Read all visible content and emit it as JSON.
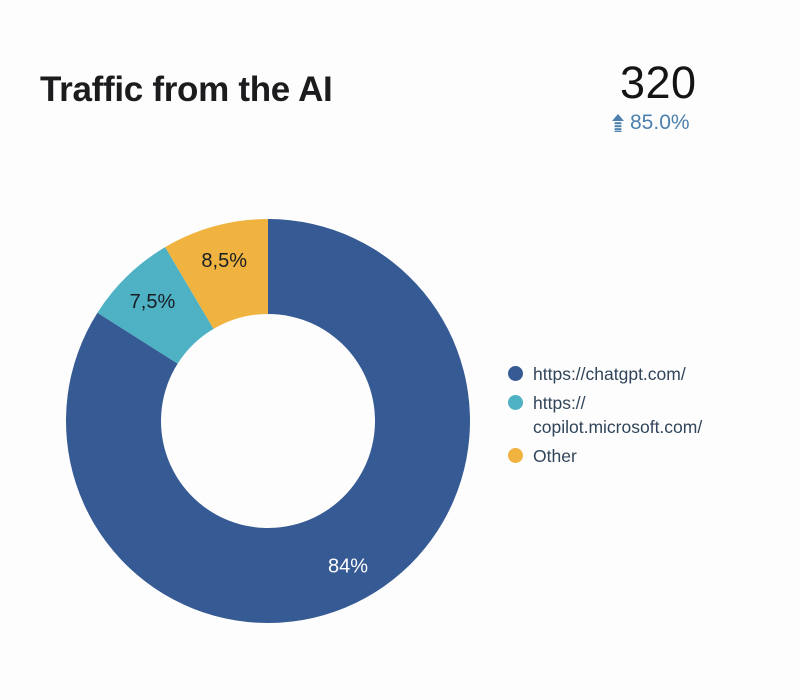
{
  "header": {
    "title": "Traffic from the AI"
  },
  "scorecard": {
    "value": "320",
    "delta": "85.0%",
    "delta_direction": "up",
    "delta_color": "#4c80ad"
  },
  "legend": {
    "items": [
      {
        "text": "https://chatgpt.com/"
      },
      {
        "text": "https://\ncopilot.microsoft.com/"
      },
      {
        "text": "Other"
      }
    ]
  },
  "chart_data": {
    "type": "pie",
    "subtype": "donut",
    "title": "Traffic from the AI",
    "unit": "%",
    "start_angle_deg": 0,
    "direction": "clockwise",
    "inner_radius_ratio": 0.53,
    "label_radius_ratio": 0.82,
    "legend_position": "right",
    "slices": [
      {
        "name": "https://chatgpt.com/",
        "value": 84,
        "label": "84%",
        "color": "#365a94",
        "label_color": "#ffffff"
      },
      {
        "name": "https://copilot.microsoft.com/",
        "value": 7.5,
        "label": "7,5%",
        "color": "#4eb1c4",
        "label_color": "#181d24"
      },
      {
        "name": "Other",
        "value": 8.5,
        "label": "8,5%",
        "color": "#f0b340",
        "label_color": "#181d24"
      }
    ]
  }
}
